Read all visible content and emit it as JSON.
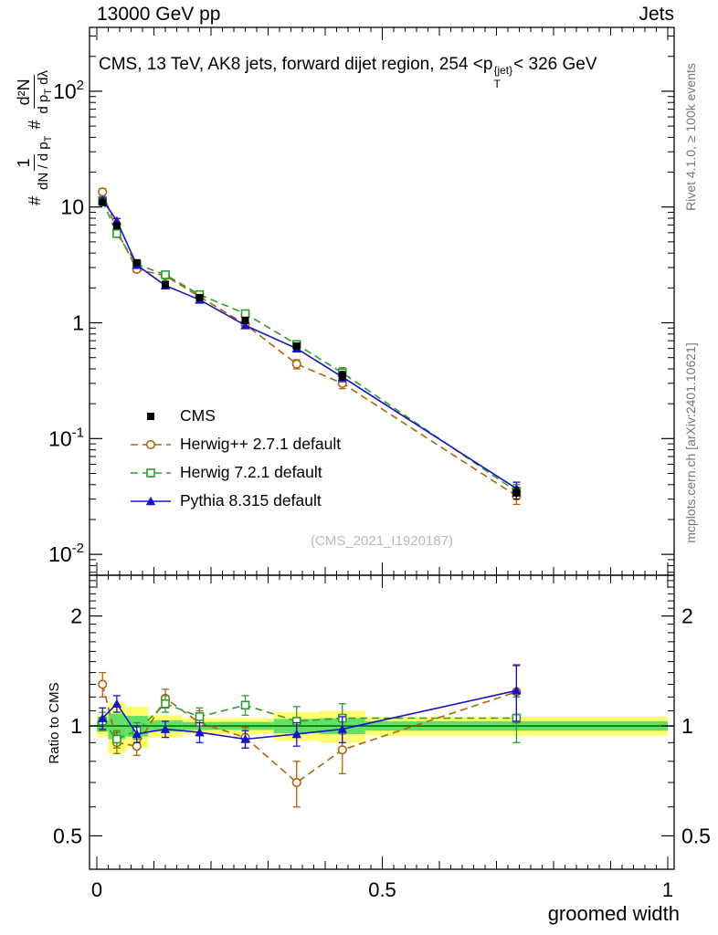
{
  "header": {
    "left": "13000 GeV pp",
    "right": "Jets"
  },
  "title": {
    "prefix": "CMS, 13 TeV, AK8 jets, forward dijet region, 254 <p",
    "sup": "{jet}",
    "sub": "T",
    "suffix": "< 326 GeV"
  },
  "ylabel_main": {
    "hash1": "#",
    "frac1_num": "1",
    "frac1_den_main": "dN / d p",
    "frac1_den_sub": "T",
    "hash2": "#",
    "frac2_num": "d²N",
    "frac2_den_main": "d p",
    "frac2_den_sub": "T",
    "frac2_den_tail": " dλ"
  },
  "ylabel_ratio": "Ratio to CMS",
  "xlabel": "groomed width",
  "watermark": "(CMS_2021_I1920187)",
  "side_notes": {
    "top_right": "Rivet 4.1.0, ≥ 100k events",
    "bottom_right": "mcplots.cern.ch [arXiv:2401.10621]"
  },
  "chart_data": {
    "type": "line",
    "title": "CMS, 13 TeV, AK8 jets, forward dijet region, 254 < p_T^{jet} < 326 GeV",
    "xlabel": "groomed width",
    "ylabel": "1/(dN/dp_T) d²N/(dp_T dλ)",
    "ratio_ylabel": "Ratio to CMS",
    "legend_position": "left-middle",
    "x": [
      0.01,
      0.035,
      0.07,
      0.12,
      0.18,
      0.26,
      0.35,
      0.43,
      0.735
    ],
    "bin_edges": [
      0.0,
      0.02,
      0.05,
      0.09,
      0.15,
      0.21,
      0.31,
      0.39,
      0.47,
      1.0
    ],
    "x_axis": {
      "min": -0.0128,
      "max": 1.0112,
      "minor_step": 0.02,
      "labels": [
        {
          "v": 0,
          "label": "0"
        },
        {
          "v": 0.5,
          "label": "0.5"
        },
        {
          "v": 1,
          "label": "1"
        }
      ]
    },
    "main_axis": {
      "scale": "log",
      "min": 0.0066,
      "max": 356,
      "labels": [
        {
          "v": 100,
          "base": "10",
          "exp": "2"
        },
        {
          "v": 10,
          "base": "10",
          "exp": ""
        },
        {
          "v": 1,
          "base": "1",
          "exp": ""
        },
        {
          "v": 0.1,
          "base": "10",
          "exp": "-1"
        },
        {
          "v": 0.01,
          "base": "10",
          "exp": "-2"
        }
      ]
    },
    "ratio_axis": {
      "scale": "log",
      "min": 0.405,
      "max": 2.586,
      "labels": [
        {
          "v": 2,
          "label": "2"
        },
        {
          "v": 1,
          "label": "1"
        },
        {
          "v": 0.5,
          "label": "0.5"
        }
      ]
    },
    "series": [
      {
        "name": "CMS",
        "color": "#000000",
        "marker": "square-filled",
        "line": "none",
        "values": [
          11.0,
          6.9,
          3.3,
          2.15,
          1.65,
          1.05,
          0.63,
          0.35,
          0.034
        ],
        "errors": [
          0.7,
          0.35,
          0.18,
          0.12,
          0.09,
          0.06,
          0.04,
          0.03,
          0.004
        ]
      },
      {
        "name": "Herwig++ 2.7.1 default",
        "color": "#b26309",
        "marker": "circle-open",
        "line": "dashed",
        "values": [
          13.5,
          6.2,
          2.9,
          2.55,
          1.68,
          0.97,
          0.44,
          0.3,
          0.032
        ],
        "errors": [
          0.9,
          0.35,
          0.16,
          0.14,
          0.1,
          0.06,
          0.04,
          0.03,
          0.005
        ],
        "ratio": [
          1.3,
          0.9,
          0.88,
          1.19,
          1.02,
          0.93,
          0.7,
          0.86,
          1.24
        ],
        "ratio_errors": [
          0.1,
          0.06,
          0.05,
          0.07,
          0.08,
          0.06,
          0.1,
          0.12,
          0.22
        ]
      },
      {
        "name": "Herwig 7.2.1 default",
        "color": "#2e9b2e",
        "marker": "square-open",
        "line": "dashed",
        "values": [
          11.3,
          5.9,
          3.2,
          2.6,
          1.75,
          1.2,
          0.65,
          0.37,
          0.035
        ],
        "errors": [
          0.6,
          0.3,
          0.16,
          0.13,
          0.09,
          0.07,
          0.05,
          0.04,
          0.005
        ],
        "ratio": [
          1.03,
          0.92,
          0.97,
          1.15,
          1.06,
          1.14,
          1.03,
          1.05,
          1.05
        ],
        "ratio_errors": [
          0.06,
          0.05,
          0.05,
          0.06,
          0.06,
          0.07,
          0.1,
          0.1,
          0.15
        ]
      },
      {
        "name": "Pythia 8.315 default",
        "color": "#1414cc",
        "marker": "triangle-filled",
        "line": "solid",
        "values": [
          11.5,
          7.6,
          3.15,
          2.1,
          1.58,
          0.95,
          0.6,
          0.34,
          0.037
        ],
        "errors": [
          0.6,
          0.35,
          0.16,
          0.11,
          0.08,
          0.05,
          0.04,
          0.03,
          0.005
        ],
        "ratio": [
          1.05,
          1.15,
          0.95,
          0.98,
          0.96,
          0.92,
          0.95,
          0.98,
          1.25
        ],
        "ratio_errors": [
          0.07,
          0.06,
          0.05,
          0.05,
          0.06,
          0.05,
          0.07,
          0.08,
          0.22
        ]
      }
    ],
    "bands": {
      "color_yellow": "#ffff6e",
      "color_green": "#63e063",
      "ref_color": "#007700",
      "yellow": [
        0.07,
        0.16,
        0.13,
        0.07,
        0.05,
        0.05,
        0.09,
        0.1,
        0.06
      ],
      "green": [
        0.035,
        0.08,
        0.065,
        0.035,
        0.025,
        0.025,
        0.045,
        0.05,
        0.03
      ]
    }
  }
}
